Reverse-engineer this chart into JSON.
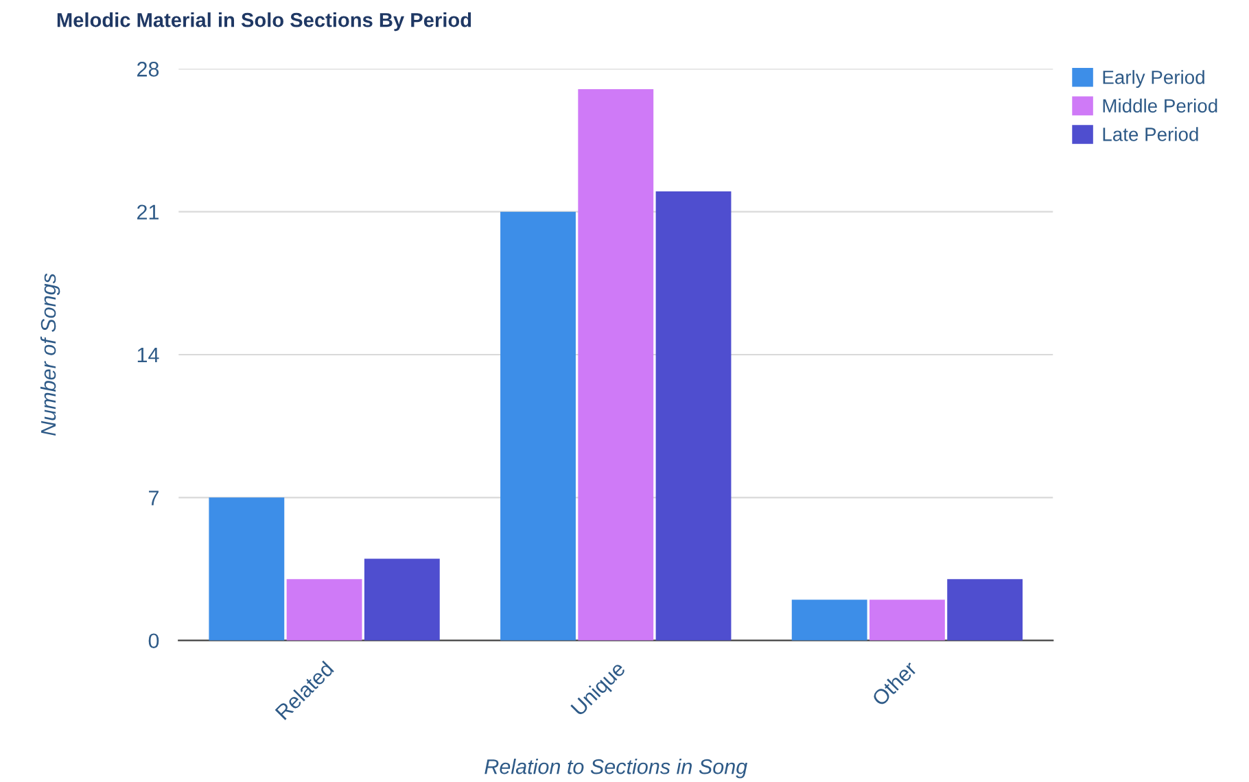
{
  "chart_data": {
    "type": "bar",
    "title": "Melodic Material in Solo Sections By Period",
    "xlabel": "Relation to Sections in Song",
    "ylabel": "Number of Songs",
    "categories": [
      "Related",
      "Unique",
      "Other"
    ],
    "series": [
      {
        "name": "Early Period",
        "color": "#3d8ee8",
        "values": [
          7,
          21,
          2
        ]
      },
      {
        "name": "Middle Period",
        "color": "#cf7af7",
        "values": [
          3,
          27,
          2
        ]
      },
      {
        "name": "Late Period",
        "color": "#4f4ecf",
        "values": [
          4,
          22,
          3
        ]
      }
    ],
    "ylim": [
      0,
      28
    ],
    "yticks": [
      0,
      7,
      14,
      21,
      28
    ],
    "grid": "y",
    "legend": "top right"
  }
}
